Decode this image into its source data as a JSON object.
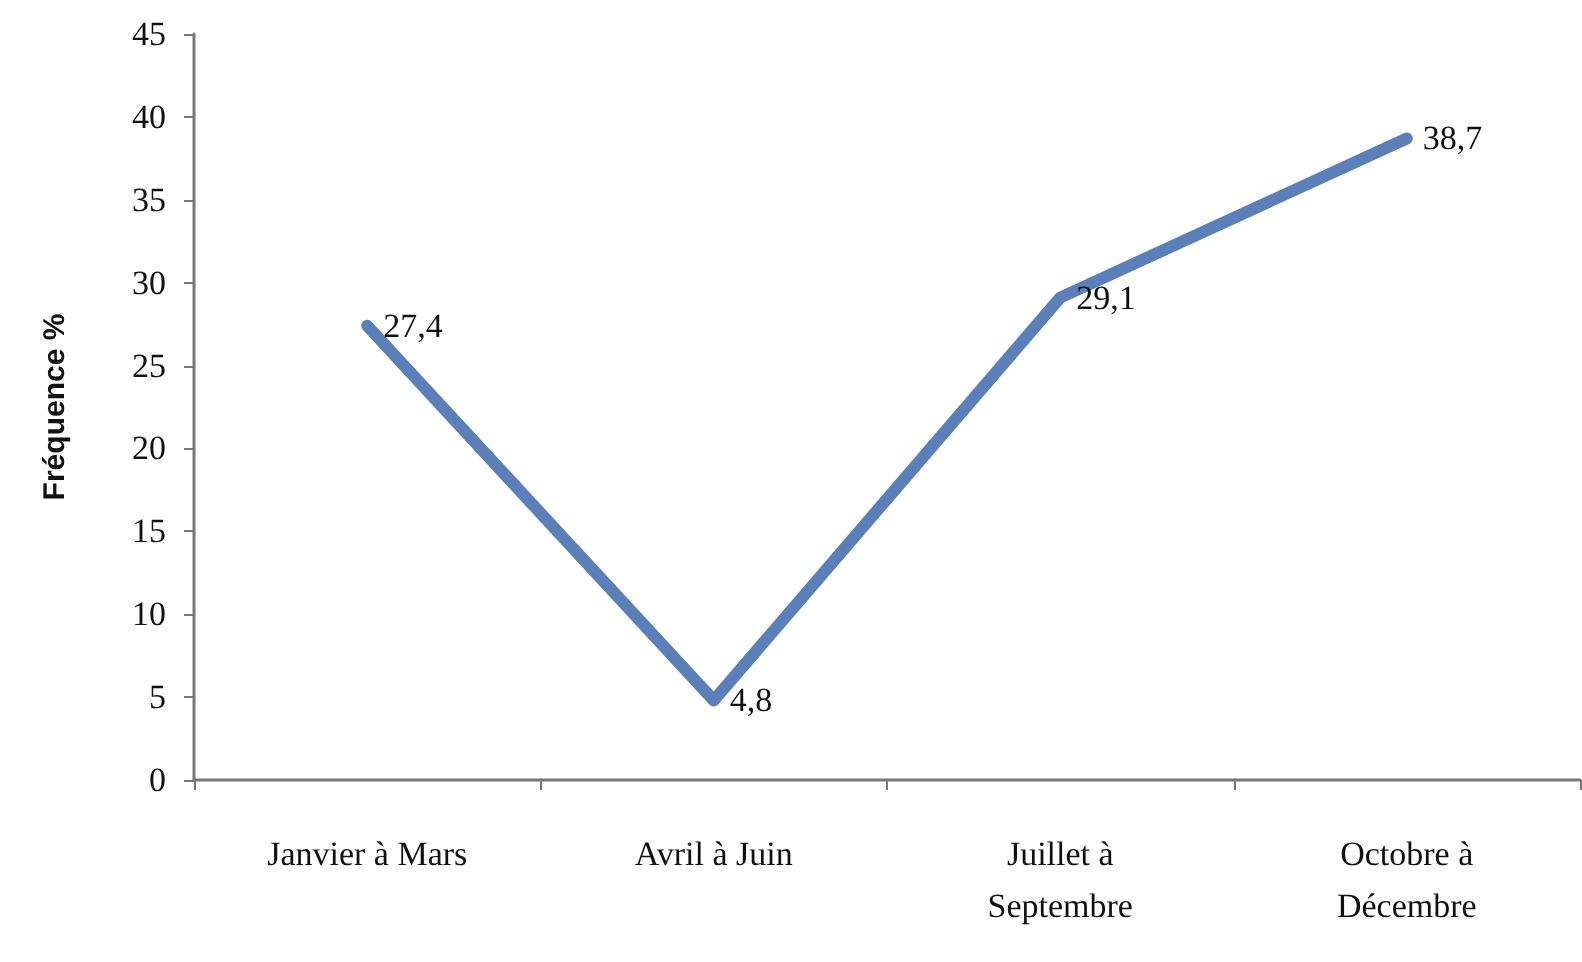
{
  "chart_data": {
    "type": "line",
    "ylabel": "Fréquence %",
    "categories": [
      "Janvier à Mars",
      "Avril à Juin",
      "Juillet à\nSeptembre",
      "Octobre à\nDécembre"
    ],
    "series": [
      {
        "color": "#5b7fb8",
        "values": [
          27.4,
          4.8,
          29.1,
          38.7
        ],
        "value_labels": [
          "27,4",
          "4,8",
          "29,1",
          "38,7"
        ]
      }
    ],
    "ylim": [
      0,
      45
    ],
    "yticks": [
      0,
      5,
      10,
      15,
      20,
      25,
      30,
      35,
      40,
      45
    ],
    "grid": false,
    "marker": "none",
    "line_style": "solid"
  }
}
